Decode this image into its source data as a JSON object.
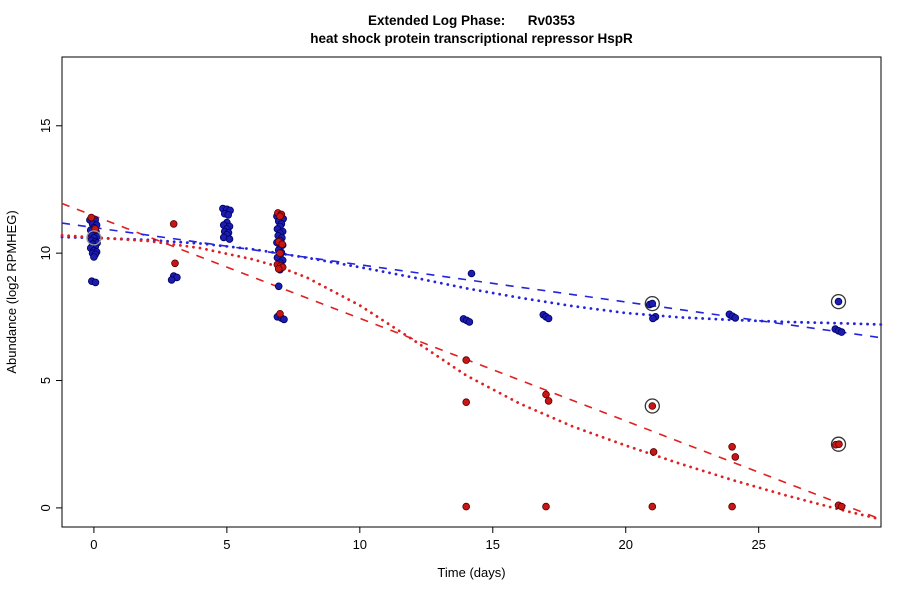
{
  "chart_data": {
    "type": "scatter",
    "title": "Extended Log Phase:      Rv0353",
    "subtitle": "heat shock protein transcriptional repressor HspR",
    "xlabel": "Time  (days)",
    "ylabel": "Abundance  (log2 RPMHEG)",
    "xlim": [
      -1.2,
      29.6
    ],
    "ylim": [
      -0.75,
      17.7
    ],
    "xticks": [
      0,
      5,
      10,
      15,
      20,
      25
    ],
    "yticks": [
      0,
      5,
      10,
      15
    ],
    "grid": false,
    "legend": "none",
    "point_colors": {
      "blue": "#1c1cb0",
      "red": "#c81616"
    },
    "line_colors": {
      "blue": "#2424dd",
      "red": "#e02020"
    },
    "series": [
      {
        "name": "blue-condition",
        "color": "#1c1cb0",
        "edge": "#000060",
        "points": [
          [
            -0.15,
            11.3
          ],
          [
            0.05,
            11.3
          ],
          [
            -0.05,
            11.15
          ],
          [
            0.1,
            11.1
          ],
          [
            0.0,
            11.0
          ],
          [
            -0.12,
            10.9
          ],
          [
            0.08,
            10.85
          ],
          [
            0.0,
            10.75
          ],
          [
            -0.08,
            10.7
          ],
          [
            0.12,
            10.65
          ],
          [
            0.0,
            10.6
          ],
          [
            -0.1,
            10.5
          ],
          [
            0.05,
            10.45
          ],
          [
            0.12,
            10.4
          ],
          [
            -0.05,
            10.35
          ],
          [
            0.05,
            10.25
          ],
          [
            -0.12,
            10.2
          ],
          [
            0.0,
            10.1
          ],
          [
            0.1,
            10.05
          ],
          [
            -0.05,
            10.0
          ],
          [
            0.05,
            9.95
          ],
          [
            0.0,
            9.85
          ],
          [
            -0.08,
            8.9
          ],
          [
            0.06,
            8.85
          ],
          [
            3.0,
            9.1
          ],
          [
            3.12,
            9.05
          ],
          [
            2.92,
            8.95
          ],
          [
            4.85,
            11.75
          ],
          [
            5.0,
            11.72
          ],
          [
            5.12,
            11.68
          ],
          [
            4.92,
            11.55
          ],
          [
            5.05,
            11.5
          ],
          [
            5.0,
            11.2
          ],
          [
            4.88,
            11.1
          ],
          [
            5.1,
            11.05
          ],
          [
            5.0,
            10.95
          ],
          [
            4.92,
            10.85
          ],
          [
            5.06,
            10.8
          ],
          [
            5.0,
            10.72
          ],
          [
            4.88,
            10.62
          ],
          [
            5.1,
            10.55
          ],
          [
            6.88,
            11.45
          ],
          [
            7.02,
            11.4
          ],
          [
            7.12,
            11.35
          ],
          [
            6.95,
            11.25
          ],
          [
            7.05,
            11.15
          ],
          [
            7.0,
            11.05
          ],
          [
            6.9,
            10.95
          ],
          [
            7.1,
            10.85
          ],
          [
            7.0,
            10.78
          ],
          [
            6.93,
            10.68
          ],
          [
            7.07,
            10.6
          ],
          [
            7.0,
            10.5
          ],
          [
            6.88,
            10.42
          ],
          [
            7.1,
            10.32
          ],
          [
            7.0,
            10.22
          ],
          [
            6.95,
            10.12
          ],
          [
            7.05,
            10.02
          ],
          [
            7.0,
            9.92
          ],
          [
            6.9,
            9.82
          ],
          [
            7.1,
            9.72
          ],
          [
            7.0,
            9.62
          ],
          [
            7.0,
            9.35
          ],
          [
            6.95,
            8.7
          ],
          [
            6.9,
            7.5
          ],
          [
            7.05,
            7.45
          ],
          [
            7.15,
            7.4
          ],
          [
            14.2,
            9.2
          ],
          [
            13.9,
            7.42
          ],
          [
            14.02,
            7.36
          ],
          [
            14.12,
            7.3
          ],
          [
            16.9,
            7.58
          ],
          [
            17.0,
            7.5
          ],
          [
            17.1,
            7.44
          ],
          [
            20.9,
            7.98
          ],
          [
            21.0,
            8.02
          ],
          [
            21.12,
            7.5
          ],
          [
            21.02,
            7.44
          ],
          [
            23.9,
            7.6
          ],
          [
            24.02,
            7.52
          ],
          [
            24.12,
            7.46
          ],
          [
            28.0,
            8.1
          ],
          [
            27.88,
            7.02
          ],
          [
            28.0,
            6.95
          ],
          [
            28.12,
            6.9
          ]
        ]
      },
      {
        "name": "red-condition",
        "color": "#c81616",
        "edge": "#550000",
        "points": [
          [
            -0.1,
            11.4
          ],
          [
            0.05,
            10.95
          ],
          [
            3.0,
            11.15
          ],
          [
            3.05,
            9.6
          ],
          [
            6.92,
            11.58
          ],
          [
            7.05,
            11.52
          ],
          [
            7.0,
            11.45
          ],
          [
            6.95,
            10.45
          ],
          [
            7.08,
            10.35
          ],
          [
            7.0,
            10.0
          ],
          [
            6.9,
            9.55
          ],
          [
            7.02,
            9.5
          ],
          [
            7.1,
            9.45
          ],
          [
            6.95,
            9.38
          ],
          [
            7.0,
            7.62
          ],
          [
            14.0,
            5.8
          ],
          [
            14.0,
            4.15
          ],
          [
            14.0,
            0.05
          ],
          [
            17.0,
            4.45
          ],
          [
            17.1,
            4.2
          ],
          [
            17.0,
            0.05
          ],
          [
            21.0,
            4.0
          ],
          [
            21.05,
            2.2
          ],
          [
            21.0,
            0.05
          ],
          [
            24.0,
            2.4
          ],
          [
            24.12,
            2.0
          ],
          [
            24.0,
            0.05
          ],
          [
            27.9,
            2.48
          ],
          [
            28.02,
            2.5
          ],
          [
            28.0,
            0.1
          ],
          [
            28.12,
            0.05
          ]
        ]
      }
    ],
    "lines": [
      {
        "name": "red-dashed-linear-fit",
        "color": "#e02020",
        "style": "dashed",
        "dash": "8 8",
        "width": 1.6,
        "points": [
          [
            -1.2,
            11.95
          ],
          [
            29.6,
            -0.45
          ]
        ]
      },
      {
        "name": "blue-dashed-linear-fit",
        "color": "#2424dd",
        "style": "dashed",
        "dash": "8 8",
        "width": 1.6,
        "points": [
          [
            -1.2,
            11.18
          ],
          [
            29.6,
            6.68
          ]
        ]
      },
      {
        "name": "blue-dotted-smooth-fit",
        "color": "#2424dd",
        "style": "dotted",
        "dash": "0.1 6.5",
        "width": 2.8,
        "linecap": "round",
        "points": [
          [
            -1.2,
            10.63
          ],
          [
            0,
            10.6
          ],
          [
            2,
            10.52
          ],
          [
            4,
            10.38
          ],
          [
            6,
            10.15
          ],
          [
            8,
            9.82
          ],
          [
            10,
            9.45
          ],
          [
            12,
            9.05
          ],
          [
            14,
            8.62
          ],
          [
            16,
            8.25
          ],
          [
            18,
            7.92
          ],
          [
            20,
            7.65
          ],
          [
            22,
            7.48
          ],
          [
            24,
            7.38
          ],
          [
            26,
            7.3
          ],
          [
            28,
            7.25
          ],
          [
            29.6,
            7.2
          ]
        ]
      },
      {
        "name": "red-dotted-smooth-fit",
        "color": "#e02020",
        "style": "dotted",
        "dash": "0.1 6.5",
        "width": 2.8,
        "linecap": "round",
        "points": [
          [
            -1.2,
            10.7
          ],
          [
            0,
            10.62
          ],
          [
            2,
            10.48
          ],
          [
            4,
            10.2
          ],
          [
            6,
            9.75
          ],
          [
            7,
            9.45
          ],
          [
            8,
            9.05
          ],
          [
            10,
            7.95
          ],
          [
            12,
            6.6
          ],
          [
            14,
            5.2
          ],
          [
            16,
            4.1
          ],
          [
            18,
            3.2
          ],
          [
            20,
            2.45
          ],
          [
            22,
            1.75
          ],
          [
            24,
            1.1
          ],
          [
            26,
            0.5
          ],
          [
            28,
            -0.05
          ],
          [
            29.6,
            -0.45
          ]
        ]
      }
    ],
    "highlighted_points": [
      {
        "x": 0,
        "y": 10.6,
        "ring_color": "#9a9a9a"
      },
      {
        "x": 21,
        "y": 8.02,
        "ring_color": "#333333"
      },
      {
        "x": 21,
        "y": 4.0,
        "ring_color": "#333333"
      },
      {
        "x": 28,
        "y": 8.1,
        "ring_color": "#333333"
      },
      {
        "x": 28,
        "y": 2.5,
        "ring_color": "#333333"
      }
    ]
  }
}
